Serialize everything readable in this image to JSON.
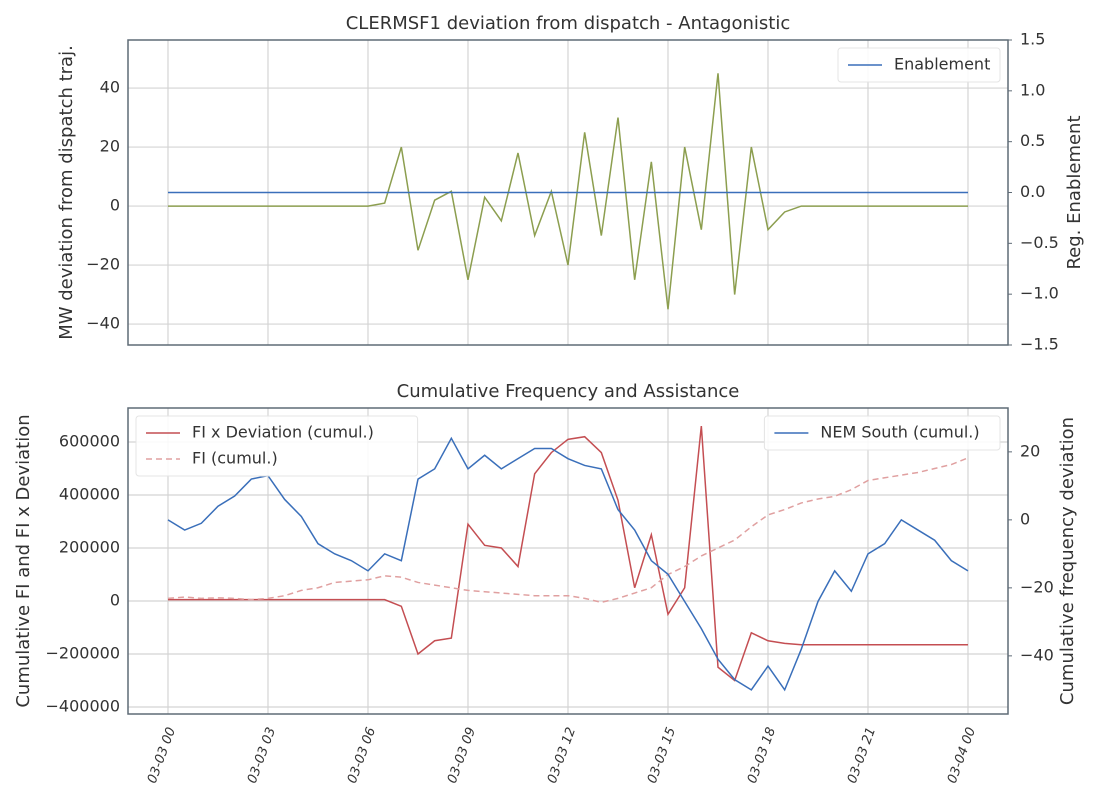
{
  "chart_data": [
    {
      "type": "line",
      "title": "CLERMSF1 deviation from dispatch - Antagonistic",
      "ylabel": "MW deviation from dispatch traj.",
      "y2label": "Reg. Enablement",
      "x": [
        0,
        0.5,
        1,
        1.5,
        2,
        2.5,
        3,
        3.5,
        4,
        4.5,
        5,
        5.5,
        6,
        6.5,
        7,
        7.5,
        8,
        8.5,
        9,
        9.5,
        10,
        10.5,
        11,
        11.5,
        12,
        12.5,
        13,
        13.5,
        14,
        14.5,
        15,
        15.5,
        16,
        16.5,
        17,
        17.5,
        18,
        18.5,
        19,
        19.5,
        20,
        20.5,
        21,
        21.5,
        22,
        22.5,
        23,
        23.5,
        24
      ],
      "xlim": [
        -1.2,
        25.2
      ],
      "xticks": [
        0,
        3,
        6,
        9,
        12,
        15,
        18,
        21,
        24
      ],
      "show_xtick_labels": false,
      "ylim": [
        -47.1,
        56.3
      ],
      "yticks": [
        {
          "value": -40,
          "label": "−40"
        },
        {
          "value": -20,
          "label": "−20"
        },
        0,
        20,
        40
      ],
      "y2lim": [
        -1.5,
        1.5
      ],
      "y2ticks": [
        {
          "value": -1.5,
          "label": "−1.5"
        },
        {
          "value": -1.0,
          "label": "−1.0"
        },
        {
          "value": -0.5,
          "label": "−0.5"
        },
        {
          "value": 0,
          "label": "0.0"
        },
        0.5,
        {
          "value": 1.0,
          "label": "1.0"
        },
        1.5
      ],
      "grid": true,
      "legend": {
        "y": "upper right",
        "y2": "upper right"
      },
      "series": [
        {
          "color": "#8c9e4f",
          "axis": "y",
          "values": [
            0,
            0,
            0,
            0,
            0,
            0,
            0,
            0,
            0,
            0,
            0,
            0,
            0,
            1,
            20,
            -15,
            2,
            5,
            -25,
            3,
            -5,
            18,
            -10,
            5,
            -20,
            25,
            -10,
            30,
            -25,
            15,
            -35,
            20,
            -8,
            45,
            -30,
            20,
            -8,
            -2,
            0,
            0,
            0,
            0,
            0,
            0,
            0,
            0,
            0,
            0,
            0
          ]
        },
        {
          "name": "Enablement",
          "color": "#3a6fba",
          "axis": "y2",
          "values": [
            0,
            0,
            0,
            0,
            0,
            0,
            0,
            0,
            0,
            0,
            0,
            0,
            0,
            0,
            0,
            0,
            0,
            0,
            0,
            0,
            0,
            0,
            0,
            0,
            0,
            0,
            0,
            0,
            0,
            0,
            0,
            0,
            0,
            0,
            0,
            0,
            0,
            0,
            0,
            0,
            0,
            0,
            0,
            0,
            0,
            0,
            0,
            0,
            0
          ]
        }
      ]
    },
    {
      "type": "line",
      "title": "Cumulative Frequency and Assistance",
      "ylabel": "Cumulative FI and FI x Deviation",
      "y2label": "Cumulative frequency deviation",
      "x": [
        0,
        0.5,
        1,
        1.5,
        2,
        2.5,
        3,
        3.5,
        4,
        4.5,
        5,
        5.5,
        6,
        6.5,
        7,
        7.5,
        8,
        8.5,
        9,
        9.5,
        10,
        10.5,
        11,
        11.5,
        12,
        12.5,
        13,
        13.5,
        14,
        14.5,
        15,
        15.5,
        16,
        16.5,
        17,
        17.5,
        18,
        18.5,
        19,
        19.5,
        20,
        20.5,
        21,
        21.5,
        22,
        22.5,
        23,
        23.5,
        24
      ],
      "xlim": [
        -1.2,
        25.2
      ],
      "xticks": [
        {
          "value": 0,
          "label": "03-03 00"
        },
        {
          "value": 3,
          "label": "03-03 03"
        },
        {
          "value": 6,
          "label": "03-03 06"
        },
        {
          "value": 9,
          "label": "03-03 09"
        },
        {
          "value": 12,
          "label": "03-03 12"
        },
        {
          "value": 15,
          "label": "03-03 15"
        },
        {
          "value": 18,
          "label": "03-03 18"
        },
        {
          "value": 21,
          "label": "03-03 21"
        },
        {
          "value": 24,
          "label": "03-04 00"
        }
      ],
      "show_xtick_labels": true,
      "ylim": [
        -426400,
        728300
      ],
      "yticks": [
        {
          "value": -400000,
          "label": "−400000"
        },
        {
          "value": -200000,
          "label": "−200000"
        },
        0,
        200000,
        400000,
        600000
      ],
      "y2lim": [
        -57.1,
        32.9
      ],
      "y2ticks": [
        {
          "value": -40,
          "label": "−40"
        },
        {
          "value": -20,
          "label": "−20"
        },
        0,
        20
      ],
      "grid": true,
      "legend": {
        "y": "upper left",
        "y2": "upper right"
      },
      "series": [
        {
          "name": "FI x Deviation (cumul.)",
          "color": "#c44e52",
          "axis": "y",
          "values": [
            5000,
            5000,
            5000,
            5000,
            5000,
            5000,
            5000,
            5000,
            5000,
            5000,
            5000,
            5000,
            5000,
            5000,
            -20000,
            -200000,
            -150000,
            -140000,
            290000,
            210000,
            200000,
            130000,
            480000,
            560000,
            610000,
            620000,
            560000,
            380000,
            50000,
            250000,
            -50000,
            50000,
            660000,
            -250000,
            -300000,
            -120000,
            -150000,
            -160000,
            -165000,
            -165000,
            -165000,
            -165000,
            -165000,
            -165000,
            -165000,
            -165000,
            -165000,
            -165000,
            -165000
          ]
        },
        {
          "name": "FI (cumul.)",
          "color": "#e0a0a0",
          "axis": "y",
          "dashed": true,
          "values": [
            10000,
            15000,
            10000,
            12000,
            10000,
            5000,
            10000,
            20000,
            40000,
            50000,
            70000,
            75000,
            80000,
            95000,
            90000,
            70000,
            60000,
            50000,
            40000,
            35000,
            30000,
            25000,
            20000,
            20000,
            20000,
            10000,
            -5000,
            10000,
            30000,
            50000,
            100000,
            130000,
            170000,
            200000,
            230000,
            280000,
            325000,
            345000,
            370000,
            385000,
            395000,
            420000,
            455000,
            465000,
            475000,
            485000,
            500000,
            515000,
            540000
          ]
        },
        {
          "name": "NEM South (cumul.)",
          "color": "#3a6fba",
          "axis": "y2",
          "values": [
            0,
            -3,
            -1,
            4,
            7,
            12,
            13,
            6,
            1,
            -7,
            -10,
            -12,
            -15,
            -10,
            -12,
            12,
            15,
            24,
            15,
            19,
            15,
            18,
            21,
            21,
            18,
            16,
            15,
            3,
            -3,
            -12,
            -16,
            -24,
            -32,
            -41,
            -47,
            -50,
            -43,
            -50,
            -38,
            -24,
            -15,
            -21,
            -10,
            -7,
            0,
            -3,
            -6,
            -12,
            -15
          ]
        }
      ]
    }
  ]
}
